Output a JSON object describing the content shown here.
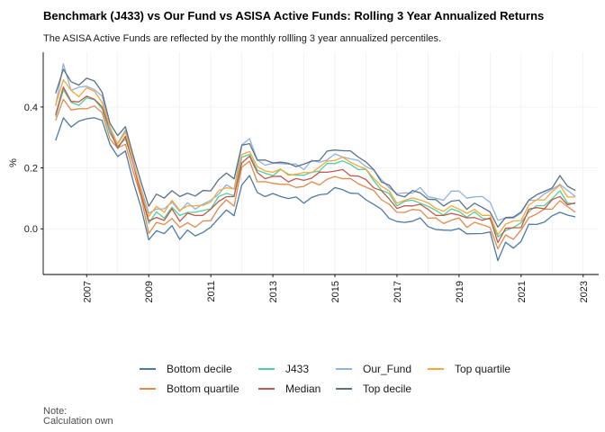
{
  "header": {
    "title": "Benchmark (J433) vs Our Fund vs ASISA Active Funds: Rolling 3 Year Annualized Returns",
    "subtitle": "The ASISA Active Funds are reflected by the monthly rollling 3 year annualized percentiles."
  },
  "caption": {
    "line1": "Note:",
    "line2": "Calculation own"
  },
  "chart_data": {
    "type": "line",
    "ylabel": "%",
    "xlabel": "",
    "xlim": [
      2005.6,
      2023.5
    ],
    "ylim": [
      -0.15,
      0.58
    ],
    "y_ticks": [
      0.0,
      0.2,
      0.4
    ],
    "y_tick_labels": [
      "0.0",
      "0.2",
      "0.4"
    ],
    "x_ticks": [
      2007,
      2009,
      2011,
      2013,
      2015,
      2017,
      2019,
      2021,
      2023
    ],
    "x_tick_labels": [
      "2007",
      "2009",
      "2011",
      "2013",
      "2015",
      "2017",
      "2019",
      "2021",
      "2023"
    ],
    "grid": true,
    "legend_position": "bottom",
    "x": [
      2006.0,
      2006.25,
      2006.5,
      2006.75,
      2007.0,
      2007.25,
      2007.5,
      2007.75,
      2008.0,
      2008.25,
      2008.5,
      2008.75,
      2009.0,
      2009.25,
      2009.5,
      2009.75,
      2010.0,
      2010.25,
      2010.5,
      2010.75,
      2011.0,
      2011.25,
      2011.5,
      2011.75,
      2012.0,
      2012.25,
      2012.5,
      2012.75,
      2013.0,
      2013.25,
      2013.5,
      2013.75,
      2014.0,
      2014.25,
      2014.5,
      2014.75,
      2015.0,
      2015.25,
      2015.5,
      2015.75,
      2016.0,
      2016.25,
      2016.5,
      2016.75,
      2017.0,
      2017.25,
      2017.5,
      2017.75,
      2018.0,
      2018.25,
      2018.5,
      2018.75,
      2019.0,
      2019.25,
      2019.5,
      2019.75,
      2020.0,
      2020.25,
      2020.5,
      2020.75,
      2021.0,
      2021.25,
      2021.5,
      2021.75,
      2022.0,
      2022.25,
      2022.5,
      2022.75
    ],
    "series": [
      {
        "name": "Bottom decile",
        "color": "#4e79a7",
        "values": [
          0.29,
          0.36,
          0.34,
          0.35,
          0.36,
          0.37,
          0.35,
          0.28,
          0.24,
          0.25,
          0.16,
          0.07,
          -0.04,
          0.0,
          -0.02,
          0.01,
          -0.03,
          -0.01,
          -0.02,
          -0.01,
          0.0,
          0.04,
          0.06,
          0.04,
          0.15,
          0.17,
          0.12,
          0.11,
          0.11,
          0.11,
          0.1,
          0.1,
          0.09,
          0.1,
          0.11,
          0.12,
          0.13,
          0.13,
          0.12,
          0.11,
          0.1,
          0.08,
          0.06,
          0.04,
          0.02,
          0.02,
          0.03,
          0.03,
          0.01,
          0.0,
          -0.01,
          0.0,
          0.0,
          -0.02,
          -0.01,
          -0.02,
          -0.01,
          -0.1,
          -0.05,
          -0.06,
          -0.04,
          0.01,
          0.02,
          0.02,
          0.04,
          0.06,
          0.04,
          0.04
        ]
      },
      {
        "name": "Bottom quartile",
        "color": "#e08a4c",
        "values": [
          0.35,
          0.43,
          0.39,
          0.39,
          0.4,
          0.4,
          0.38,
          0.3,
          0.26,
          0.28,
          0.19,
          0.1,
          -0.01,
          0.02,
          0.01,
          0.04,
          0.0,
          0.02,
          0.01,
          0.02,
          0.03,
          0.07,
          0.09,
          0.08,
          0.2,
          0.22,
          0.16,
          0.15,
          0.15,
          0.15,
          0.14,
          0.14,
          0.14,
          0.15,
          0.15,
          0.16,
          0.17,
          0.17,
          0.16,
          0.15,
          0.14,
          0.12,
          0.1,
          0.08,
          0.05,
          0.06,
          0.06,
          0.06,
          0.04,
          0.03,
          0.02,
          0.03,
          0.03,
          0.01,
          0.02,
          0.01,
          0.01,
          -0.07,
          -0.02,
          -0.03,
          -0.01,
          0.04,
          0.05,
          0.06,
          0.07,
          0.09,
          0.07,
          0.06
        ]
      },
      {
        "name": "J433",
        "color": "#4fcf9f",
        "values": [
          0.37,
          0.46,
          0.41,
          0.41,
          0.43,
          0.42,
          0.4,
          0.31,
          0.27,
          0.3,
          0.21,
          0.12,
          0.02,
          0.05,
          0.04,
          0.07,
          0.04,
          0.06,
          0.05,
          0.06,
          0.07,
          0.1,
          0.12,
          0.11,
          0.23,
          0.25,
          0.19,
          0.18,
          0.18,
          0.19,
          0.18,
          0.18,
          0.17,
          0.19,
          0.19,
          0.21,
          0.22,
          0.22,
          0.21,
          0.2,
          0.19,
          0.16,
          0.13,
          0.11,
          0.08,
          0.09,
          0.09,
          0.09,
          0.07,
          0.06,
          0.05,
          0.06,
          0.06,
          0.04,
          0.05,
          0.04,
          0.03,
          -0.03,
          0.0,
          0.0,
          0.02,
          0.06,
          0.07,
          0.08,
          0.1,
          0.12,
          0.09,
          0.08
        ]
      },
      {
        "name": "Median",
        "color": "#c0594e",
        "values": [
          0.38,
          0.46,
          0.42,
          0.42,
          0.43,
          0.43,
          0.4,
          0.32,
          0.27,
          0.3,
          0.21,
          0.12,
          0.02,
          0.04,
          0.03,
          0.06,
          0.03,
          0.05,
          0.04,
          0.05,
          0.06,
          0.09,
          0.11,
          0.1,
          0.22,
          0.24,
          0.18,
          0.17,
          0.17,
          0.17,
          0.16,
          0.16,
          0.16,
          0.17,
          0.18,
          0.19,
          0.19,
          0.19,
          0.18,
          0.17,
          0.16,
          0.14,
          0.12,
          0.1,
          0.07,
          0.07,
          0.08,
          0.08,
          0.06,
          0.05,
          0.04,
          0.05,
          0.05,
          0.03,
          0.04,
          0.03,
          0.03,
          -0.04,
          0.0,
          0.0,
          0.01,
          0.06,
          0.07,
          0.07,
          0.09,
          0.11,
          0.08,
          0.08
        ]
      },
      {
        "name": "Our_Fund",
        "color": "#8fb2e0",
        "values": [
          0.4,
          0.54,
          0.46,
          0.46,
          0.47,
          0.46,
          0.43,
          0.33,
          0.28,
          0.32,
          0.22,
          0.13,
          0.05,
          0.07,
          0.06,
          0.09,
          0.06,
          0.08,
          0.07,
          0.08,
          0.09,
          0.12,
          0.14,
          0.13,
          0.28,
          0.29,
          0.23,
          0.21,
          0.21,
          0.22,
          0.21,
          0.21,
          0.2,
          0.22,
          0.22,
          0.23,
          0.24,
          0.24,
          0.23,
          0.22,
          0.21,
          0.19,
          0.16,
          0.14,
          0.11,
          0.12,
          0.12,
          0.13,
          0.11,
          0.1,
          0.09,
          0.13,
          0.12,
          0.1,
          0.11,
          0.1,
          0.09,
          0.03,
          0.03,
          0.04,
          0.05,
          0.09,
          0.1,
          0.11,
          0.13,
          0.15,
          0.12,
          0.11
        ]
      },
      {
        "name": "Top decile",
        "color": "#5b7185",
        "values": [
          0.44,
          0.53,
          0.48,
          0.47,
          0.5,
          0.48,
          0.45,
          0.35,
          0.3,
          0.34,
          0.24,
          0.15,
          0.08,
          0.11,
          0.1,
          0.13,
          0.1,
          0.12,
          0.11,
          0.12,
          0.13,
          0.16,
          0.18,
          0.17,
          0.27,
          0.28,
          0.23,
          0.22,
          0.22,
          0.22,
          0.21,
          0.21,
          0.21,
          0.22,
          0.23,
          0.25,
          0.26,
          0.26,
          0.25,
          0.24,
          0.22,
          0.19,
          0.16,
          0.14,
          0.11,
          0.11,
          0.12,
          0.12,
          0.1,
          0.09,
          0.08,
          0.09,
          0.09,
          0.07,
          0.08,
          0.07,
          0.06,
          0.0,
          0.04,
          0.04,
          0.05,
          0.1,
          0.11,
          0.12,
          0.14,
          0.17,
          0.14,
          0.13
        ]
      },
      {
        "name": "Top quartile",
        "color": "#f5a83a",
        "values": [
          0.41,
          0.49,
          0.45,
          0.44,
          0.46,
          0.45,
          0.42,
          0.33,
          0.28,
          0.32,
          0.22,
          0.13,
          0.04,
          0.07,
          0.06,
          0.09,
          0.06,
          0.08,
          0.07,
          0.08,
          0.09,
          0.12,
          0.14,
          0.13,
          0.24,
          0.26,
          0.2,
          0.19,
          0.19,
          0.19,
          0.18,
          0.18,
          0.18,
          0.19,
          0.2,
          0.22,
          0.23,
          0.23,
          0.22,
          0.21,
          0.19,
          0.17,
          0.14,
          0.12,
          0.09,
          0.09,
          0.1,
          0.1,
          0.08,
          0.07,
          0.06,
          0.07,
          0.07,
          0.05,
          0.06,
          0.05,
          0.04,
          -0.02,
          0.02,
          0.02,
          0.03,
          0.08,
          0.09,
          0.1,
          0.12,
          0.14,
          0.11,
          0.1
        ]
      }
    ],
    "legend": [
      [
        "Bottom decile",
        "J433",
        "Our_Fund",
        "Top quartile"
      ],
      [
        "Bottom quartile",
        "Median",
        "Top decile"
      ]
    ]
  }
}
